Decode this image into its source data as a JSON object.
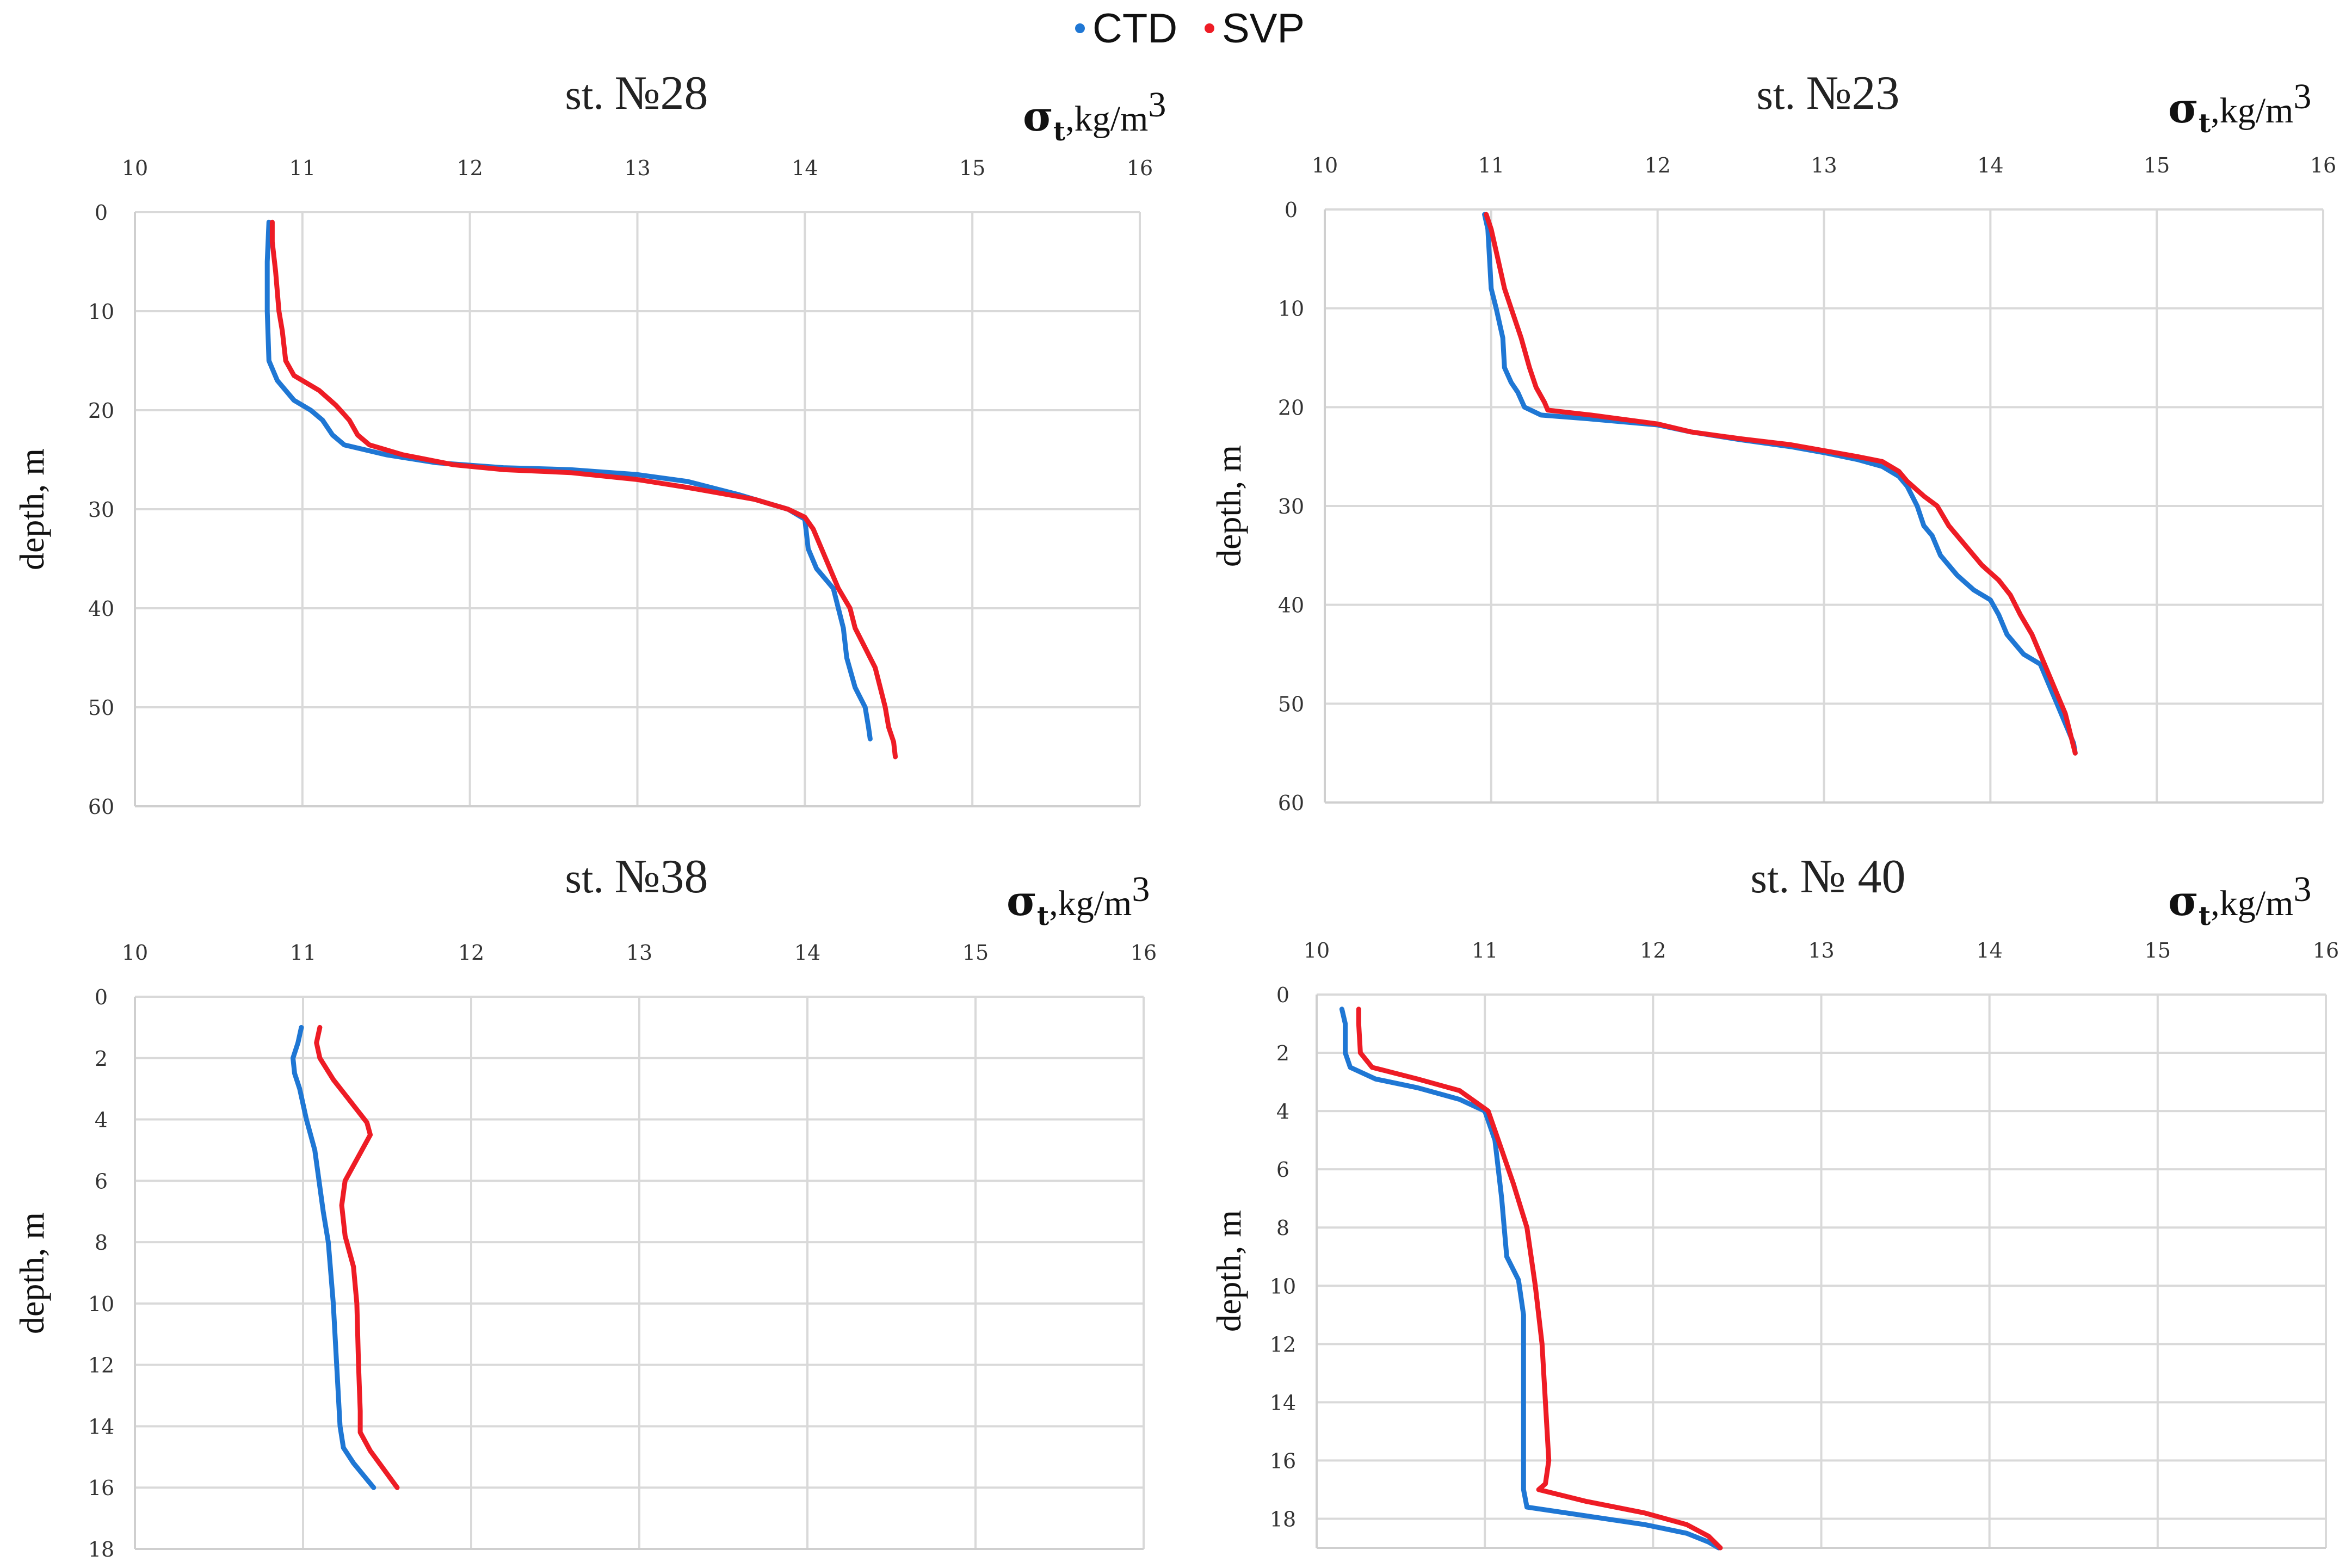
{
  "legend": [
    {
      "name": "CTD",
      "color": "#1f77d4"
    },
    {
      "name": "SVP",
      "color": "#ee1c25"
    }
  ],
  "chart_data": [
    {
      "type": "line",
      "title_prefix": "st.",
      "title_number": "№28",
      "xlabel": "σt,kg/m3",
      "x_unit": "kg/m",
      "x_sup": "3",
      "ylabel": "depth, m",
      "xlim": [
        10,
        16
      ],
      "ylim": [
        0,
        60
      ],
      "x_ticks": [
        "10",
        "11",
        "12",
        "13",
        "14",
        "15",
        "16"
      ],
      "y_ticks": [
        "0",
        "10",
        "20",
        "30",
        "40",
        "50",
        "60"
      ],
      "series": [
        {
          "name": "CTD",
          "color": "#1f77d4",
          "points": [
            [
              10.8,
              1
            ],
            [
              10.79,
              5
            ],
            [
              10.79,
              10
            ],
            [
              10.8,
              15
            ],
            [
              10.85,
              17
            ],
            [
              10.95,
              19
            ],
            [
              11.05,
              20
            ],
            [
              11.12,
              21
            ],
            [
              11.18,
              22.5
            ],
            [
              11.25,
              23.5
            ],
            [
              11.5,
              24.5
            ],
            [
              11.8,
              25.3
            ],
            [
              12.2,
              25.8
            ],
            [
              12.6,
              26
            ],
            [
              13.0,
              26.5
            ],
            [
              13.3,
              27.2
            ],
            [
              13.6,
              28.5
            ],
            [
              13.8,
              29.5
            ],
            [
              13.9,
              30
            ],
            [
              14.0,
              31
            ],
            [
              14.02,
              34
            ],
            [
              14.07,
              36
            ],
            [
              14.17,
              38
            ],
            [
              14.2,
              40
            ],
            [
              14.23,
              42
            ],
            [
              14.25,
              45
            ],
            [
              14.3,
              48
            ],
            [
              14.36,
              50
            ],
            [
              14.38,
              52
            ],
            [
              14.39,
              53.2
            ]
          ]
        },
        {
          "name": "SVP",
          "color": "#ee1c25",
          "points": [
            [
              10.82,
              1
            ],
            [
              10.82,
              3
            ],
            [
              10.84,
              6
            ],
            [
              10.86,
              10
            ],
            [
              10.88,
              12
            ],
            [
              10.9,
              15
            ],
            [
              10.95,
              16.5
            ],
            [
              11.1,
              18
            ],
            [
              11.2,
              19.5
            ],
            [
              11.28,
              21
            ],
            [
              11.33,
              22.5
            ],
            [
              11.4,
              23.5
            ],
            [
              11.6,
              24.5
            ],
            [
              11.9,
              25.5
            ],
            [
              12.2,
              26
            ],
            [
              12.6,
              26.3
            ],
            [
              13.0,
              27
            ],
            [
              13.3,
              27.8
            ],
            [
              13.7,
              29
            ],
            [
              13.9,
              30
            ],
            [
              14.0,
              30.8
            ],
            [
              14.05,
              32
            ],
            [
              14.1,
              34
            ],
            [
              14.15,
              36
            ],
            [
              14.2,
              38
            ],
            [
              14.27,
              40
            ],
            [
              14.3,
              42
            ],
            [
              14.36,
              44
            ],
            [
              14.42,
              46
            ],
            [
              14.45,
              48
            ],
            [
              14.48,
              50
            ],
            [
              14.5,
              52
            ],
            [
              14.53,
              53.5
            ],
            [
              14.54,
              55
            ]
          ]
        }
      ]
    },
    {
      "type": "line",
      "title_prefix": "st.",
      "title_number": "№23",
      "xlabel": "σt,kg/m3",
      "x_unit": "kg/m",
      "x_sup": "3",
      "ylabel": "depth, m",
      "xlim": [
        10,
        16
      ],
      "ylim": [
        0,
        60
      ],
      "x_ticks": [
        "10",
        "11",
        "12",
        "13",
        "14",
        "15",
        "16"
      ],
      "y_ticks": [
        "0",
        "10",
        "20",
        "30",
        "40",
        "50",
        "60"
      ],
      "series": [
        {
          "name": "CTD",
          "color": "#1f77d4",
          "points": [
            [
              10.96,
              0.5
            ],
            [
              10.98,
              2
            ],
            [
              10.99,
              5
            ],
            [
              11.0,
              8
            ],
            [
              11.03,
              10
            ],
            [
              11.07,
              13
            ],
            [
              11.08,
              16
            ],
            [
              11.12,
              17.5
            ],
            [
              11.16,
              18.5
            ],
            [
              11.2,
              20
            ],
            [
              11.3,
              20.8
            ],
            [
              11.6,
              21.2
            ],
            [
              12.0,
              21.8
            ],
            [
              12.2,
              22.5
            ],
            [
              12.5,
              23.3
            ],
            [
              12.8,
              24
            ],
            [
              13.0,
              24.6
            ],
            [
              13.2,
              25.3
            ],
            [
              13.35,
              26
            ],
            [
              13.45,
              27
            ],
            [
              13.5,
              28
            ],
            [
              13.56,
              30
            ],
            [
              13.6,
              32
            ],
            [
              13.65,
              33
            ],
            [
              13.7,
              35
            ],
            [
              13.8,
              37
            ],
            [
              13.9,
              38.5
            ],
            [
              14.0,
              39.5
            ],
            [
              14.05,
              41
            ],
            [
              14.1,
              43
            ],
            [
              14.2,
              45
            ],
            [
              14.3,
              46
            ],
            [
              14.35,
              48
            ],
            [
              14.4,
              50
            ],
            [
              14.45,
              52
            ],
            [
              14.5,
              54
            ],
            [
              14.51,
              55
            ]
          ]
        },
        {
          "name": "SVP",
          "color": "#ee1c25",
          "points": [
            [
              10.97,
              0.5
            ],
            [
              11.0,
              2
            ],
            [
              11.04,
              5
            ],
            [
              11.08,
              8
            ],
            [
              11.12,
              10
            ],
            [
              11.18,
              13
            ],
            [
              11.23,
              16
            ],
            [
              11.27,
              18
            ],
            [
              11.32,
              19.5
            ],
            [
              11.34,
              20.3
            ],
            [
              11.6,
              20.8
            ],
            [
              12.0,
              21.7
            ],
            [
              12.2,
              22.5
            ],
            [
              12.5,
              23.2
            ],
            [
              12.8,
              23.8
            ],
            [
              13.0,
              24.4
            ],
            [
              13.2,
              25
            ],
            [
              13.35,
              25.5
            ],
            [
              13.45,
              26.5
            ],
            [
              13.5,
              27.5
            ],
            [
              13.6,
              29
            ],
            [
              13.68,
              30
            ],
            [
              13.75,
              32
            ],
            [
              13.85,
              34
            ],
            [
              13.95,
              36
            ],
            [
              14.05,
              37.5
            ],
            [
              14.12,
              39
            ],
            [
              14.18,
              41
            ],
            [
              14.25,
              43
            ],
            [
              14.3,
              45
            ],
            [
              14.35,
              47
            ],
            [
              14.4,
              49
            ],
            [
              14.45,
              51
            ],
            [
              14.48,
              53
            ],
            [
              14.51,
              55
            ]
          ]
        }
      ]
    },
    {
      "type": "line",
      "title_prefix": "st.",
      "title_number": "№38",
      "xlabel": "σt,kg/m3",
      "x_unit": "kg/m",
      "x_sup": "3",
      "ylabel": "depth, m",
      "xlim": [
        10,
        16
      ],
      "ylim": [
        0,
        18
      ],
      "x_ticks": [
        "10",
        "11",
        "12",
        "13",
        "14",
        "15",
        "16"
      ],
      "y_ticks": [
        "0",
        "2",
        "4",
        "6",
        "8",
        "10",
        "12",
        "14",
        "16",
        "18"
      ],
      "series": [
        {
          "name": "CTD",
          "color": "#1f77d4",
          "points": [
            [
              10.99,
              1
            ],
            [
              10.97,
              1.5
            ],
            [
              10.94,
              2
            ],
            [
              10.95,
              2.5
            ],
            [
              10.98,
              3
            ],
            [
              11.02,
              4
            ],
            [
              11.07,
              5
            ],
            [
              11.12,
              7
            ],
            [
              11.15,
              8
            ],
            [
              11.18,
              10
            ],
            [
              11.2,
              12
            ],
            [
              11.22,
              14
            ],
            [
              11.24,
              14.7
            ],
            [
              11.3,
              15.2
            ],
            [
              11.36,
              15.6
            ],
            [
              11.42,
              16
            ]
          ]
        },
        {
          "name": "SVP",
          "color": "#ee1c25",
          "points": [
            [
              11.1,
              1
            ],
            [
              11.08,
              1.5
            ],
            [
              11.1,
              2
            ],
            [
              11.18,
              2.7
            ],
            [
              11.28,
              3.4
            ],
            [
              11.38,
              4.1
            ],
            [
              11.4,
              4.5
            ],
            [
              11.32,
              5.3
            ],
            [
              11.25,
              6
            ],
            [
              11.23,
              6.8
            ],
            [
              11.25,
              7.8
            ],
            [
              11.3,
              8.8
            ],
            [
              11.32,
              10
            ],
            [
              11.33,
              12
            ],
            [
              11.34,
              13.5
            ],
            [
              11.34,
              14.2
            ],
            [
              11.4,
              14.8
            ],
            [
              11.48,
              15.4
            ],
            [
              11.56,
              16
            ]
          ]
        }
      ]
    },
    {
      "type": "line",
      "title_prefix": "st.",
      "title_number": "№ 40",
      "xlabel": "σt,kg/m3",
      "x_unit": "kg/m",
      "x_sup": "3",
      "ylabel": "depth, m",
      "xlim": [
        10,
        16
      ],
      "ylim": [
        0,
        19
      ],
      "x_ticks": [
        "10",
        "11",
        "12",
        "13",
        "14",
        "15",
        "16"
      ],
      "y_ticks": [
        "0",
        "2",
        "4",
        "6",
        "8",
        "10",
        "12",
        "14",
        "16",
        "18"
      ],
      "series": [
        {
          "name": "CTD",
          "color": "#1f77d4",
          "points": [
            [
              10.15,
              0.5
            ],
            [
              10.17,
              1
            ],
            [
              10.17,
              2
            ],
            [
              10.2,
              2.5
            ],
            [
              10.35,
              2.9
            ],
            [
              10.6,
              3.2
            ],
            [
              10.85,
              3.6
            ],
            [
              11.0,
              4
            ],
            [
              11.06,
              5
            ],
            [
              11.1,
              7
            ],
            [
              11.13,
              9
            ],
            [
              11.2,
              9.8
            ],
            [
              11.23,
              11
            ],
            [
              11.23,
              13
            ],
            [
              11.23,
              15
            ],
            [
              11.23,
              17
            ],
            [
              11.25,
              17.6
            ],
            [
              11.6,
              17.9
            ],
            [
              11.95,
              18.2
            ],
            [
              12.2,
              18.5
            ],
            [
              12.33,
              18.8
            ],
            [
              12.39,
              19
            ]
          ]
        },
        {
          "name": "SVP",
          "color": "#ee1c25",
          "points": [
            [
              10.25,
              0.5
            ],
            [
              10.25,
              1
            ],
            [
              10.26,
              2
            ],
            [
              10.33,
              2.5
            ],
            [
              10.6,
              2.9
            ],
            [
              10.85,
              3.3
            ],
            [
              11.02,
              4
            ],
            [
              11.08,
              5
            ],
            [
              11.17,
              6.5
            ],
            [
              11.25,
              8
            ],
            [
              11.3,
              10
            ],
            [
              11.34,
              12
            ],
            [
              11.36,
              14
            ],
            [
              11.38,
              16
            ],
            [
              11.36,
              16.8
            ],
            [
              11.32,
              17
            ],
            [
              11.6,
              17.4
            ],
            [
              11.95,
              17.8
            ],
            [
              12.2,
              18.2
            ],
            [
              12.33,
              18.6
            ],
            [
              12.4,
              19
            ]
          ]
        }
      ]
    }
  ]
}
